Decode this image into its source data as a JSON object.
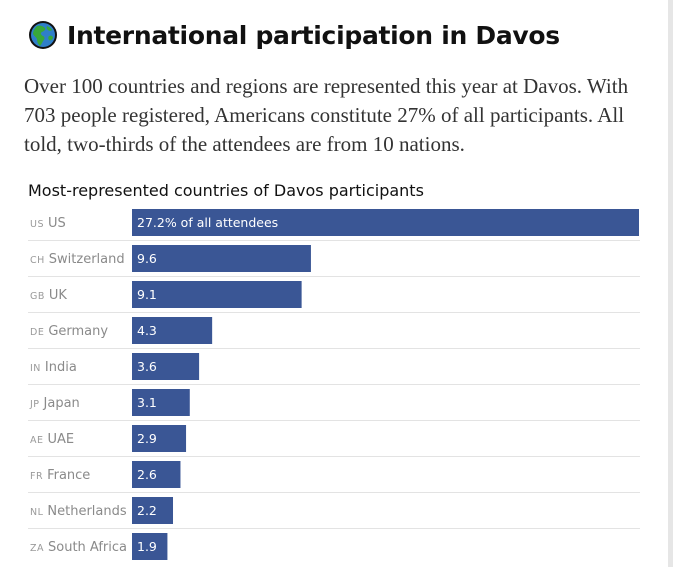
{
  "header": {
    "icon": "globe-icon",
    "title": "International participation in Davos"
  },
  "intro": "Over 100 countries and regions are represented this year at Davos. With 703 people registered, Americans constitute 27% of all participants. All told, two-thirds of the attendees are from 10 nations.",
  "colors": {
    "bar": "#3a5695",
    "globe_ocean": "#2f7fc9",
    "globe_land": "#38a83a"
  },
  "chart_data": {
    "type": "bar",
    "orientation": "horizontal",
    "title": "Most-represented countries of Davos participants",
    "value_unit": "% of all attendees",
    "first_value_label": "27.2% of all attendees",
    "categories": [
      {
        "code": "US",
        "name": "US"
      },
      {
        "code": "CH",
        "name": "Switzerland"
      },
      {
        "code": "GB",
        "name": "UK"
      },
      {
        "code": "DE",
        "name": "Germany"
      },
      {
        "code": "IN",
        "name": "India"
      },
      {
        "code": "JP",
        "name": "Japan"
      },
      {
        "code": "AE",
        "name": "UAE"
      },
      {
        "code": "FR",
        "name": "France"
      },
      {
        "code": "NL",
        "name": "Netherlands"
      },
      {
        "code": "ZA",
        "name": "South Africa"
      }
    ],
    "values": [
      27.2,
      9.6,
      9.1,
      4.3,
      3.6,
      3.1,
      2.9,
      2.6,
      2.2,
      1.9
    ],
    "value_labels": [
      "27.2% of all attendees",
      "9.6",
      "9.1",
      "4.3",
      "3.6",
      "3.1",
      "2.9",
      "2.6",
      "2.2",
      "1.9"
    ],
    "xlim": [
      0,
      27.2
    ]
  }
}
